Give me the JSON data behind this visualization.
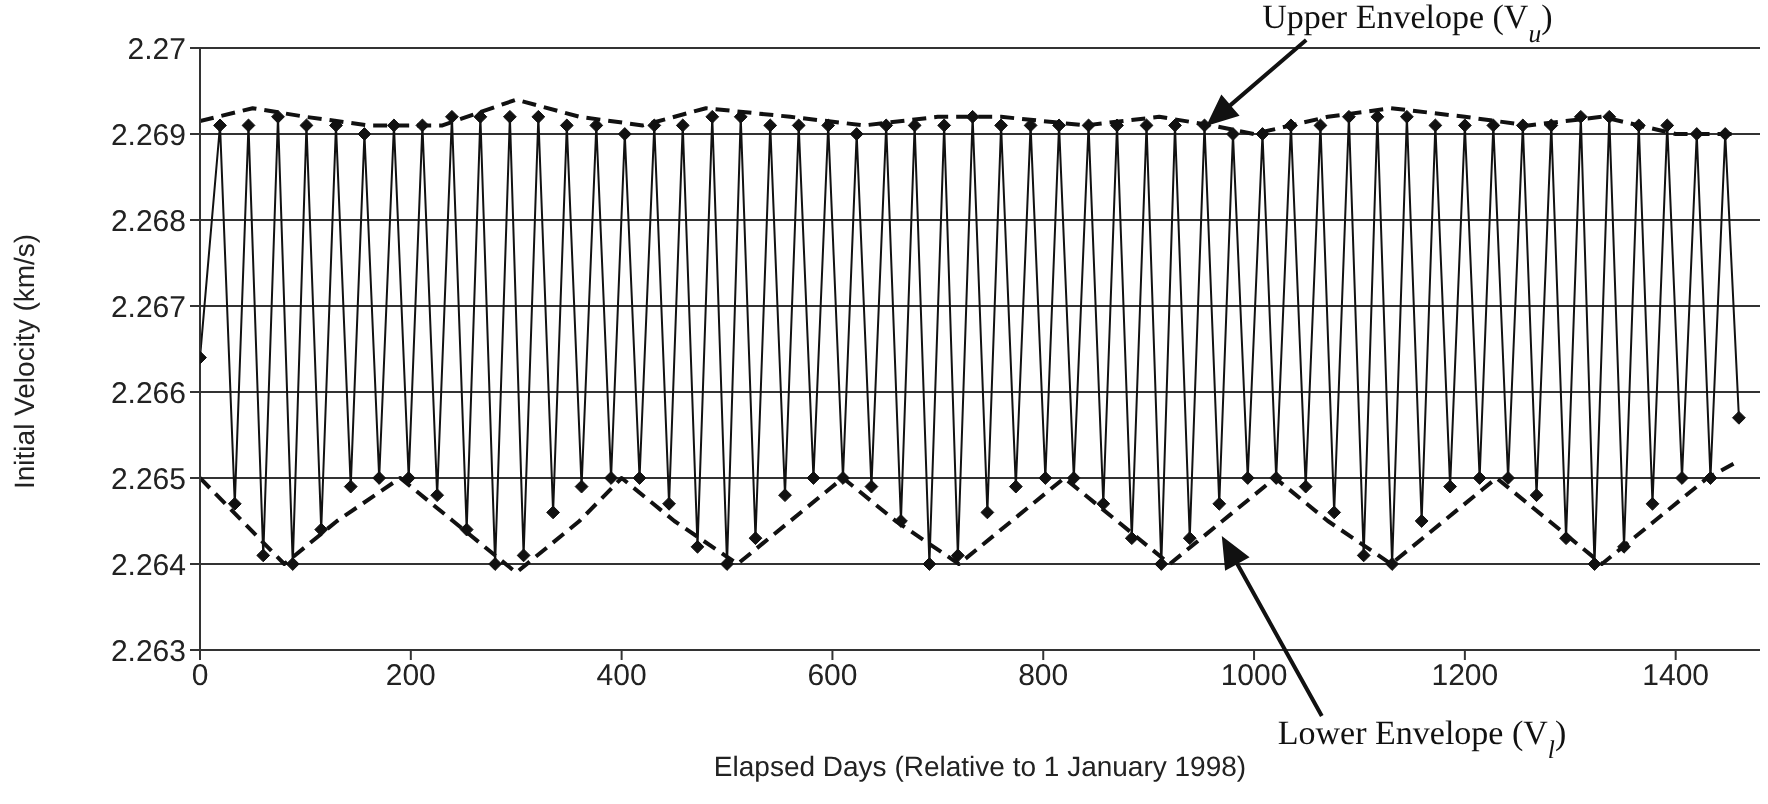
{
  "chart_data": {
    "type": "line",
    "xlabel": "Elapsed Days (Relative to 1 January 1998)",
    "ylabel": "Initial Velocity (km/s)",
    "xlim": [
      0,
      1480
    ],
    "xticks": [
      0,
      200,
      400,
      600,
      800,
      1000,
      1200,
      1400
    ],
    "ylim": [
      2.263,
      2.27
    ],
    "yticks": [
      2.263,
      2.264,
      2.265,
      2.266,
      2.267,
      2.268,
      2.269,
      2.27
    ],
    "grid": "y",
    "series": [
      {
        "color": "#111111",
        "marker": "diamond",
        "line_style": "solid",
        "x": [
          0,
          19,
          33,
          46,
          60,
          74,
          88,
          101,
          115,
          129,
          143,
          156,
          170,
          184,
          198,
          211,
          225,
          239,
          253,
          266,
          280,
          294,
          307,
          321,
          335,
          348,
          362,
          376,
          390,
          403,
          417,
          431,
          445,
          458,
          472,
          486,
          500,
          513,
          527,
          541,
          555,
          568,
          582,
          596,
          610,
          623,
          637,
          651,
          665,
          678,
          692,
          706,
          719,
          733,
          747,
          760,
          774,
          788,
          802,
          815,
          829,
          843,
          857,
          870,
          884,
          898,
          912,
          925,
          939,
          953,
          967,
          980,
          994,
          1008,
          1021,
          1035,
          1049,
          1063,
          1076,
          1090,
          1104,
          1117,
          1131,
          1145,
          1159,
          1172,
          1186,
          1200,
          1214,
          1227,
          1241,
          1255,
          1268,
          1282,
          1296,
          1310,
          1323,
          1337,
          1351,
          1365,
          1378,
          1392,
          1406,
          1420,
          1433,
          1447,
          1460
        ],
        "values": [
          2.2664,
          2.2691,
          2.2647,
          2.2691,
          2.2641,
          2.2692,
          2.264,
          2.2691,
          2.2644,
          2.2691,
          2.2649,
          2.269,
          2.265,
          2.2691,
          2.265,
          2.2691,
          2.2648,
          2.2692,
          2.2644,
          2.2692,
          2.264,
          2.2692,
          2.2641,
          2.2692,
          2.2646,
          2.2691,
          2.2649,
          2.2691,
          2.265,
          2.269,
          2.265,
          2.2691,
          2.2647,
          2.2691,
          2.2642,
          2.2692,
          2.264,
          2.2692,
          2.2643,
          2.2691,
          2.2648,
          2.2691,
          2.265,
          2.2691,
          2.265,
          2.269,
          2.2649,
          2.2691,
          2.2645,
          2.2691,
          2.264,
          2.2691,
          2.2641,
          2.2692,
          2.2646,
          2.2691,
          2.2649,
          2.2691,
          2.265,
          2.2691,
          2.265,
          2.2691,
          2.2647,
          2.2691,
          2.2643,
          2.2691,
          2.264,
          2.2691,
          2.2643,
          2.2691,
          2.2647,
          2.269,
          2.265,
          2.269,
          2.265,
          2.2691,
          2.2649,
          2.2691,
          2.2646,
          2.2692,
          2.2641,
          2.2692,
          2.264,
          2.2692,
          2.2645,
          2.2691,
          2.2649,
          2.2691,
          2.265,
          2.2691,
          2.265,
          2.2691,
          2.2648,
          2.2691,
          2.2643,
          2.2692,
          2.264,
          2.2692,
          2.2642,
          2.2691,
          2.2647,
          2.2691,
          2.265,
          2.269,
          2.265,
          2.269,
          2.2657
        ]
      },
      {
        "color": "#111111",
        "marker": "none",
        "line_style": "dashed",
        "x": [
          0,
          50,
          100,
          160,
          230,
          300,
          360,
          420,
          480,
          560,
          630,
          700,
          760,
          840,
          910,
          960,
          1000,
          1070,
          1130,
          1200,
          1260,
          1330,
          1400,
          1460
        ],
        "values": [
          2.26915,
          2.2693,
          2.2692,
          2.2691,
          2.2691,
          2.2694,
          2.2692,
          2.2691,
          2.2693,
          2.2692,
          2.2691,
          2.2692,
          2.2692,
          2.2691,
          2.2692,
          2.2691,
          2.269,
          2.2692,
          2.2693,
          2.2692,
          2.2691,
          2.2692,
          2.269,
          2.269
        ]
      },
      {
        "color": "#111111",
        "marker": "none",
        "line_style": "dashed",
        "x": [
          0,
          40,
          80,
          130,
          190,
          240,
          300,
          360,
          400,
          450,
          510,
          560,
          610,
          660,
          720,
          770,
          820,
          870,
          920,
          970,
          1020,
          1070,
          1130,
          1180,
          1230,
          1280,
          1330,
          1380,
          1430,
          1460
        ],
        "values": [
          2.265,
          2.2645,
          2.264,
          2.2645,
          2.265,
          2.2645,
          2.2639,
          2.2645,
          2.265,
          2.2645,
          2.264,
          2.2645,
          2.265,
          2.2645,
          2.264,
          2.2645,
          2.265,
          2.2645,
          2.264,
          2.2645,
          2.265,
          2.2645,
          2.264,
          2.2645,
          2.265,
          2.2645,
          2.264,
          2.2645,
          2.265,
          2.2652
        ]
      }
    ],
    "annotations": [
      "Upper Envelope (V$_{u}$)",
      "Lower Envelope (V$_{l}$)"
    ]
  }
}
